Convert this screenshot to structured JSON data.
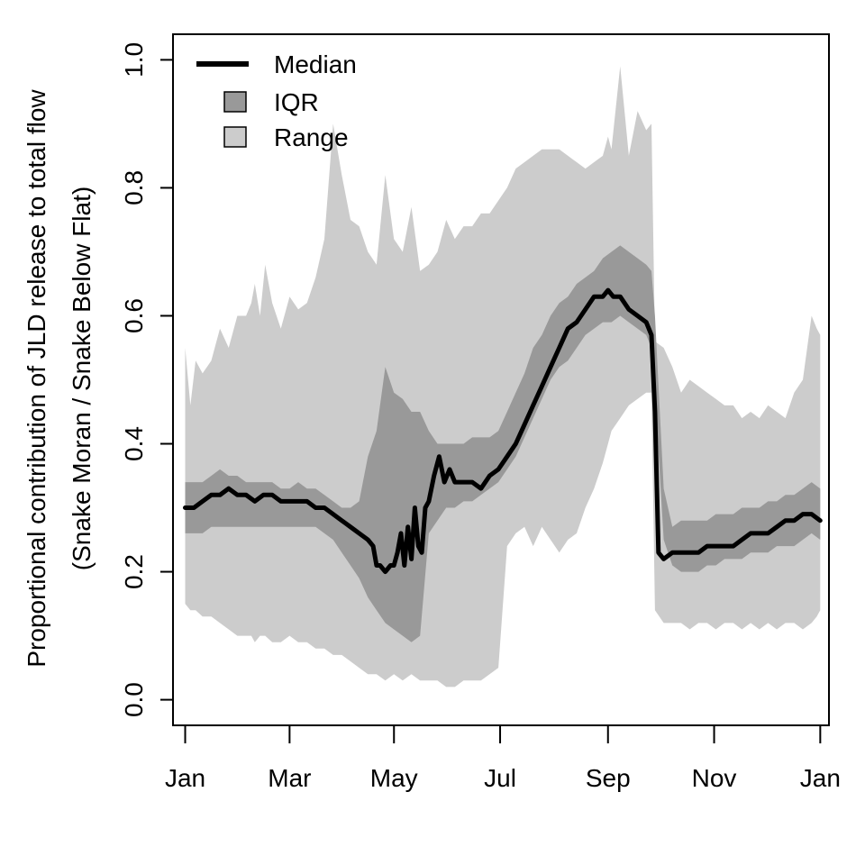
{
  "chart_data": {
    "type": "area",
    "title": "",
    "xlabel": "",
    "ylabel": {
      "line1": "Proportional contribution of JLD release to total flow",
      "line2": "(Snake Moran / Snake Below Flat)"
    },
    "ylim": [
      -0.04,
      1.04
    ],
    "xlim": [
      -7,
      370
    ],
    "yticks": [
      {
        "value": 0.0,
        "label": "0.0"
      },
      {
        "value": 0.2,
        "label": "0.2"
      },
      {
        "value": 0.4,
        "label": "0.4"
      },
      {
        "value": 0.6,
        "label": "0.6"
      },
      {
        "value": 0.8,
        "label": "0.8"
      },
      {
        "value": 1.0,
        "label": "1.0"
      }
    ],
    "xticks": [
      {
        "day": 0,
        "label": "Jan"
      },
      {
        "day": 60,
        "label": "Mar"
      },
      {
        "day": 120,
        "label": "May"
      },
      {
        "day": 181,
        "label": "Jul"
      },
      {
        "day": 243,
        "label": "Sep"
      },
      {
        "day": 304,
        "label": "Nov"
      },
      {
        "day": 365,
        "label": "Jan"
      }
    ],
    "grid": false,
    "legend_position": "top-left",
    "legend": [
      {
        "label": "Median",
        "kind": "line"
      },
      {
        "label": "IQR",
        "kind": "box"
      },
      {
        "label": "Range",
        "kind": "box"
      }
    ],
    "colors": {
      "median": "#000000",
      "iqr": "#999999",
      "range": "#cccccc"
    },
    "series": [
      {
        "key": "range",
        "kind": "band",
        "x": [
          0,
          3,
          6,
          10,
          15,
          20,
          25,
          30,
          35,
          38,
          40,
          43,
          46,
          50,
          55,
          60,
          65,
          70,
          75,
          80,
          85,
          90,
          95,
          100,
          105,
          110,
          115,
          120,
          125,
          130,
          135,
          140,
          145,
          150,
          155,
          160,
          165,
          170,
          175,
          180,
          185,
          190,
          195,
          200,
          205,
          210,
          215,
          220,
          225,
          230,
          235,
          240,
          243,
          245,
          250,
          255,
          260,
          265,
          268,
          270,
          275,
          280,
          285,
          290,
          295,
          300,
          305,
          310,
          315,
          320,
          325,
          330,
          335,
          340,
          345,
          350,
          355,
          360,
          363,
          365
        ],
        "low": [
          0.15,
          0.14,
          0.14,
          0.13,
          0.13,
          0.12,
          0.11,
          0.1,
          0.1,
          0.1,
          0.09,
          0.1,
          0.1,
          0.09,
          0.09,
          0.1,
          0.09,
          0.09,
          0.08,
          0.08,
          0.07,
          0.07,
          0.06,
          0.05,
          0.04,
          0.04,
          0.03,
          0.04,
          0.03,
          0.04,
          0.03,
          0.03,
          0.03,
          0.02,
          0.02,
          0.03,
          0.03,
          0.03,
          0.04,
          0.05,
          0.24,
          0.26,
          0.27,
          0.24,
          0.27,
          0.25,
          0.23,
          0.25,
          0.26,
          0.3,
          0.33,
          0.37,
          0.4,
          0.42,
          0.44,
          0.46,
          0.47,
          0.48,
          0.48,
          0.14,
          0.12,
          0.12,
          0.12,
          0.11,
          0.12,
          0.12,
          0.11,
          0.12,
          0.12,
          0.11,
          0.12,
          0.11,
          0.12,
          0.11,
          0.12,
          0.12,
          0.11,
          0.12,
          0.13,
          0.14
        ],
        "high": [
          0.55,
          0.46,
          0.53,
          0.51,
          0.53,
          0.58,
          0.55,
          0.6,
          0.6,
          0.62,
          0.65,
          0.6,
          0.68,
          0.62,
          0.58,
          0.63,
          0.61,
          0.62,
          0.66,
          0.72,
          0.9,
          0.82,
          0.75,
          0.74,
          0.7,
          0.68,
          0.82,
          0.72,
          0.7,
          0.77,
          0.67,
          0.68,
          0.7,
          0.75,
          0.72,
          0.74,
          0.74,
          0.76,
          0.76,
          0.78,
          0.8,
          0.83,
          0.84,
          0.85,
          0.86,
          0.86,
          0.86,
          0.85,
          0.84,
          0.83,
          0.84,
          0.85,
          0.88,
          0.86,
          0.99,
          0.85,
          0.92,
          0.89,
          0.9,
          0.56,
          0.55,
          0.52,
          0.48,
          0.5,
          0.49,
          0.48,
          0.47,
          0.46,
          0.46,
          0.44,
          0.45,
          0.44,
          0.46,
          0.45,
          0.44,
          0.48,
          0.5,
          0.6,
          0.58,
          0.57
        ]
      },
      {
        "key": "iqr",
        "kind": "band",
        "x": [
          0,
          5,
          10,
          15,
          20,
          25,
          30,
          35,
          40,
          45,
          50,
          55,
          60,
          65,
          70,
          75,
          80,
          85,
          90,
          95,
          100,
          105,
          110,
          115,
          120,
          125,
          130,
          135,
          140,
          145,
          150,
          155,
          160,
          165,
          170,
          175,
          180,
          185,
          190,
          195,
          200,
          205,
          210,
          215,
          220,
          225,
          230,
          235,
          240,
          245,
          250,
          255,
          260,
          265,
          268,
          270,
          275,
          280,
          285,
          290,
          295,
          300,
          305,
          310,
          315,
          320,
          325,
          330,
          335,
          340,
          345,
          350,
          355,
          360,
          365
        ],
        "low": [
          0.26,
          0.26,
          0.26,
          0.27,
          0.27,
          0.27,
          0.27,
          0.27,
          0.27,
          0.27,
          0.27,
          0.27,
          0.27,
          0.27,
          0.27,
          0.27,
          0.26,
          0.25,
          0.23,
          0.21,
          0.19,
          0.16,
          0.14,
          0.12,
          0.11,
          0.1,
          0.09,
          0.1,
          0.26,
          0.28,
          0.3,
          0.3,
          0.31,
          0.31,
          0.32,
          0.33,
          0.34,
          0.36,
          0.38,
          0.41,
          0.44,
          0.47,
          0.5,
          0.52,
          0.53,
          0.55,
          0.57,
          0.58,
          0.59,
          0.59,
          0.6,
          0.59,
          0.58,
          0.57,
          0.55,
          0.48,
          0.25,
          0.21,
          0.2,
          0.2,
          0.2,
          0.21,
          0.21,
          0.22,
          0.22,
          0.22,
          0.23,
          0.23,
          0.23,
          0.24,
          0.24,
          0.24,
          0.25,
          0.26,
          0.25
        ],
        "high": [
          0.34,
          0.34,
          0.34,
          0.35,
          0.36,
          0.35,
          0.35,
          0.34,
          0.34,
          0.34,
          0.34,
          0.33,
          0.33,
          0.34,
          0.33,
          0.33,
          0.32,
          0.31,
          0.3,
          0.3,
          0.31,
          0.38,
          0.42,
          0.52,
          0.48,
          0.47,
          0.45,
          0.45,
          0.42,
          0.4,
          0.4,
          0.4,
          0.4,
          0.41,
          0.41,
          0.41,
          0.42,
          0.45,
          0.48,
          0.51,
          0.55,
          0.57,
          0.6,
          0.62,
          0.63,
          0.65,
          0.66,
          0.67,
          0.69,
          0.7,
          0.71,
          0.7,
          0.69,
          0.68,
          0.67,
          0.6,
          0.33,
          0.27,
          0.28,
          0.28,
          0.28,
          0.28,
          0.29,
          0.29,
          0.29,
          0.3,
          0.3,
          0.3,
          0.31,
          0.31,
          0.32,
          0.32,
          0.33,
          0.34,
          0.33
        ]
      },
      {
        "key": "median",
        "name": "Median",
        "kind": "line",
        "x": [
          0,
          5,
          10,
          15,
          20,
          25,
          30,
          35,
          40,
          45,
          50,
          55,
          60,
          65,
          70,
          75,
          80,
          85,
          90,
          95,
          100,
          105,
          108,
          110,
          112,
          115,
          118,
          120,
          122,
          124,
          126,
          128,
          130,
          132,
          134,
          136,
          138,
          140,
          143,
          146,
          149,
          152,
          155,
          160,
          165,
          170,
          175,
          180,
          185,
          190,
          195,
          200,
          205,
          210,
          215,
          220,
          225,
          230,
          235,
          240,
          243,
          246,
          250,
          255,
          260,
          265,
          268,
          270,
          272,
          275,
          280,
          285,
          290,
          295,
          300,
          305,
          310,
          315,
          320,
          325,
          330,
          335,
          340,
          345,
          350,
          355,
          360,
          365
        ],
        "y": [
          0.3,
          0.3,
          0.31,
          0.32,
          0.32,
          0.33,
          0.32,
          0.32,
          0.31,
          0.32,
          0.32,
          0.31,
          0.31,
          0.31,
          0.31,
          0.3,
          0.3,
          0.29,
          0.28,
          0.27,
          0.26,
          0.25,
          0.24,
          0.21,
          0.21,
          0.2,
          0.21,
          0.21,
          0.23,
          0.26,
          0.21,
          0.27,
          0.22,
          0.3,
          0.24,
          0.23,
          0.3,
          0.31,
          0.35,
          0.38,
          0.34,
          0.36,
          0.34,
          0.34,
          0.34,
          0.33,
          0.35,
          0.36,
          0.38,
          0.4,
          0.43,
          0.46,
          0.49,
          0.52,
          0.55,
          0.58,
          0.59,
          0.61,
          0.63,
          0.63,
          0.64,
          0.63,
          0.63,
          0.61,
          0.6,
          0.59,
          0.57,
          0.45,
          0.23,
          0.22,
          0.23,
          0.23,
          0.23,
          0.23,
          0.24,
          0.24,
          0.24,
          0.24,
          0.25,
          0.26,
          0.26,
          0.26,
          0.27,
          0.28,
          0.28,
          0.29,
          0.29,
          0.28
        ]
      }
    ]
  }
}
